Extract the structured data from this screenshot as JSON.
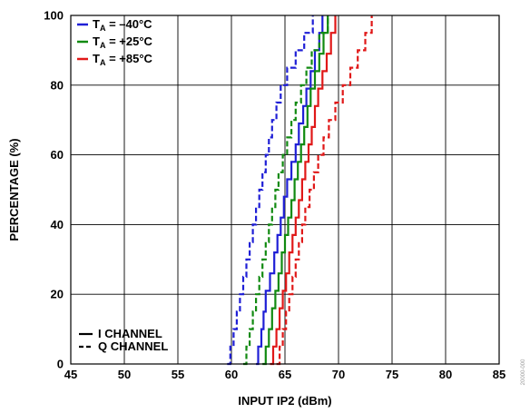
{
  "chart_data": {
    "type": "line",
    "title": "",
    "xlabel": "INPUT IP2 (dBm)",
    "ylabel": "PERCENTAGE (%)",
    "xlim": [
      45,
      85
    ],
    "ylim": [
      0,
      100
    ],
    "xticks": [
      45,
      50,
      55,
      60,
      65,
      70,
      75,
      80,
      85
    ],
    "yticks": [
      0,
      20,
      40,
      60,
      80,
      100
    ],
    "grid": true,
    "legend": {
      "placement": "top-left",
      "temperatures": [
        {
          "prefix": "T",
          "sub": "A",
          "text": " = –40°C",
          "color": "#1f1fd6"
        },
        {
          "prefix": "T",
          "sub": "A",
          "text": " = +25°C",
          "color": "#118a11"
        },
        {
          "prefix": "T",
          "sub": "A",
          "text": " = +85°C",
          "color": "#e01818"
        }
      ],
      "styles": [
        {
          "label": "I CHANNEL",
          "dash": "solid"
        },
        {
          "label": "Q CHANNEL",
          "dash": "dashed"
        }
      ]
    },
    "series": [
      {
        "temp": "TA = –40°C",
        "channel": "I CHANNEL",
        "color": "#1f1fd6",
        "dash": "solid",
        "x": [
          62.3,
          62.5,
          62.8,
          63.0,
          63.2,
          63.6,
          64.0,
          64.3,
          64.6,
          64.9,
          65.2,
          65.6,
          66.0,
          66.3,
          66.7,
          67.0,
          67.4,
          67.8,
          68.2,
          68.5
        ],
        "y": [
          0,
          5,
          10,
          15,
          21,
          26,
          32,
          37,
          42,
          48,
          53,
          58,
          63,
          69,
          74,
          79,
          84,
          90,
          95,
          100
        ]
      },
      {
        "temp": "TA = –40°C",
        "channel": "Q CHANNEL",
        "color": "#1f1fd6",
        "dash": "dashed",
        "x": [
          59.6,
          59.9,
          60.2,
          60.5,
          60.8,
          61.1,
          61.4,
          61.7,
          62.0,
          62.3,
          62.6,
          62.9,
          63.2,
          63.5,
          63.8,
          64.2,
          64.6,
          65.2,
          66.0,
          66.8,
          67.6
        ],
        "y": [
          0,
          5,
          10,
          15,
          20,
          25,
          30,
          35,
          40,
          45,
          50,
          55,
          60,
          65,
          70,
          75,
          80,
          85,
          90,
          95,
          100
        ]
      },
      {
        "temp": "TA = +25°C",
        "channel": "I CHANNEL",
        "color": "#118a11",
        "dash": "solid",
        "x": [
          62.9,
          63.2,
          63.5,
          63.8,
          64.1,
          64.4,
          64.7,
          65.0,
          65.3,
          65.6,
          65.9,
          66.2,
          66.5,
          66.8,
          67.1,
          67.4,
          67.8,
          68.2,
          68.6,
          69.0
        ],
        "y": [
          0,
          5,
          10,
          16,
          21,
          26,
          32,
          37,
          42,
          47,
          53,
          58,
          63,
          68,
          74,
          79,
          84,
          89,
          95,
          100
        ]
      },
      {
        "temp": "TA = +25°C",
        "channel": "Q CHANNEL",
        "color": "#118a11",
        "dash": "dashed",
        "x": [
          61.1,
          61.4,
          61.7,
          62.0,
          62.3,
          62.6,
          62.9,
          63.2,
          63.5,
          63.8,
          64.1,
          64.4,
          64.8,
          65.2,
          65.6,
          66.0,
          66.5,
          67.0,
          67.5,
          68.2,
          69.0
        ],
        "y": [
          0,
          5,
          10,
          15,
          20,
          25,
          30,
          35,
          40,
          45,
          50,
          55,
          60,
          65,
          70,
          75,
          80,
          85,
          90,
          95,
          100
        ]
      },
      {
        "temp": "TA = +85°C",
        "channel": "I CHANNEL",
        "color": "#e01818",
        "dash": "solid",
        "x": [
          63.6,
          63.9,
          64.2,
          64.5,
          64.8,
          65.1,
          65.4,
          65.7,
          66.0,
          66.3,
          66.6,
          66.9,
          67.2,
          67.5,
          67.8,
          68.1,
          68.5,
          68.9,
          69.3,
          69.7
        ],
        "y": [
          0,
          5,
          10,
          16,
          21,
          26,
          32,
          37,
          42,
          47,
          53,
          58,
          63,
          68,
          74,
          79,
          84,
          89,
          95,
          100
        ]
      },
      {
        "temp": "TA = +85°C",
        "channel": "Q CHANNEL",
        "color": "#e01818",
        "dash": "dashed",
        "x": [
          64.2,
          64.5,
          64.8,
          65.1,
          65.4,
          65.7,
          66.0,
          66.3,
          66.6,
          66.9,
          67.3,
          67.7,
          68.1,
          68.6,
          69.1,
          69.7,
          70.4,
          71.1,
          71.8,
          72.5,
          73.1
        ],
        "y": [
          0,
          5,
          10,
          15,
          20,
          25,
          30,
          35,
          40,
          45,
          50,
          55,
          60,
          65,
          70,
          75,
          80,
          85,
          90,
          95,
          100
        ]
      }
    ]
  },
  "figure_id": "20000-000"
}
